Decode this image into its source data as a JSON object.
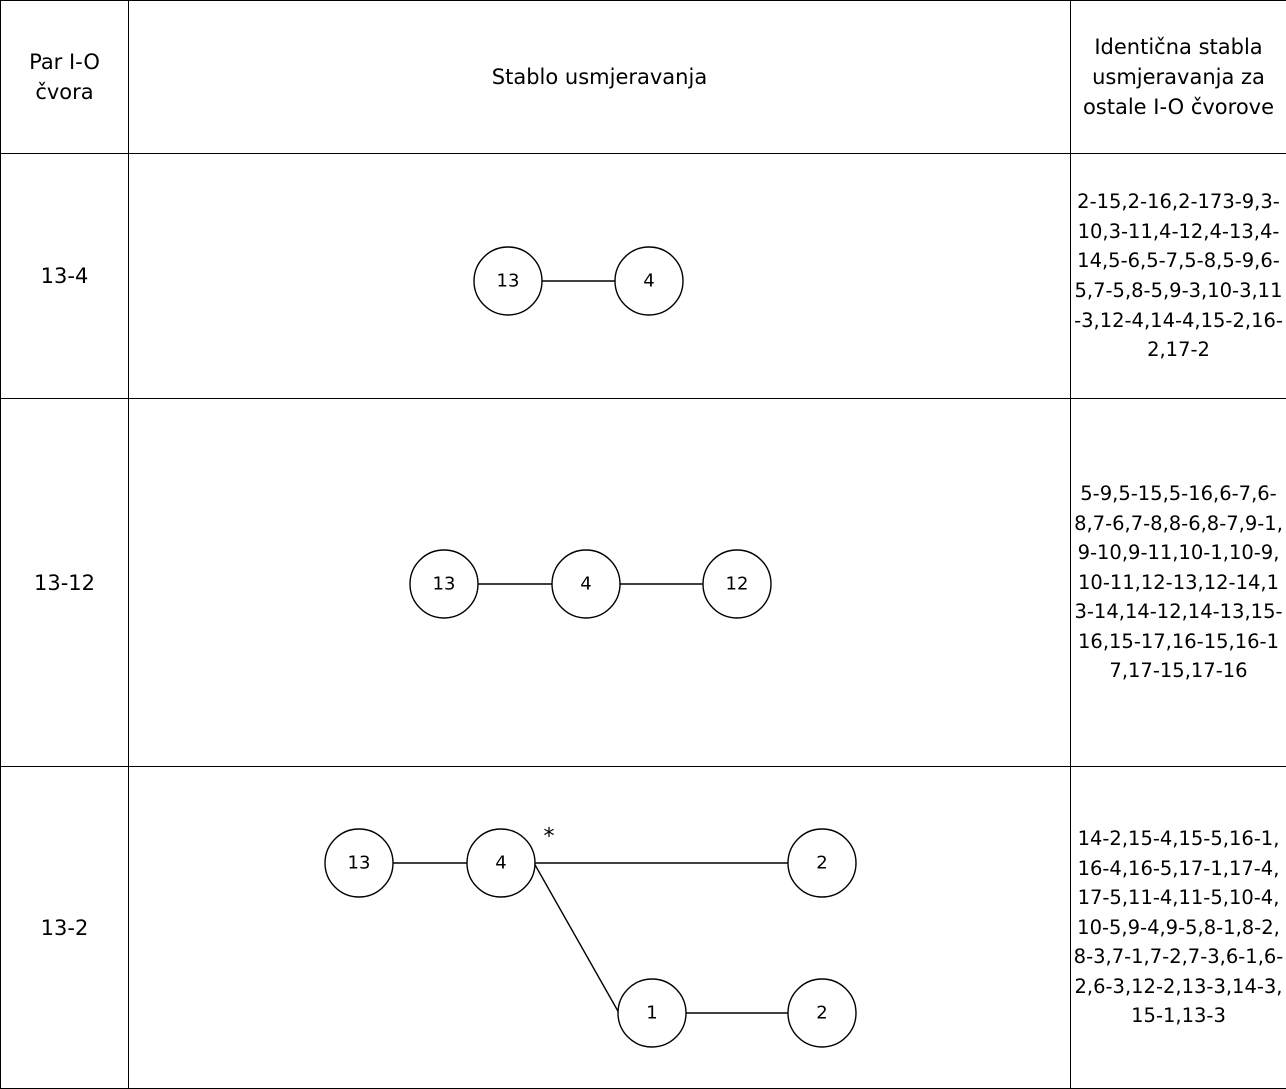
{
  "table": {
    "headers": {
      "pair_line1": "Par I-O",
      "pair_line2": "čvora",
      "tree": "Stablo usmjeravanja",
      "other": "Identična stabla usmjeravanja za ostale I-O čvorove"
    },
    "rows": [
      {
        "pair": "13-4",
        "tree_nodes": [
          "13",
          "4"
        ],
        "other": "2-15,2-16,2-173-9,3-10,3-11,4-12,4-13,4-14,5-6,5-7,5-8,5-9,6-5,7-5,8-5,9-3,10-3,11-3,12-4,14-4,15-2,16-2,17-2"
      },
      {
        "pair": "13-12",
        "tree_nodes": [
          "13",
          "4",
          "12"
        ],
        "other": "5-9,5-15,5-16,6-7,6-8,7-6,7-8,8-6,8-7,9-1,9-10,9-11,10-1,10-9,10-11,12-13,12-14,13-14,14-12,14-13,15-16,15-17,16-15,16-17,17-15,17-16"
      },
      {
        "pair": "13-2",
        "tree_nodes": [
          "13",
          "4",
          "2",
          "1",
          "2"
        ],
        "marker": "*",
        "other": "14-2,15-4,15-5,16-1,16-4,16-5,17-1,17-4,17-5,11-4,11-5,10-4,10-5,9-4,9-5,8-1,8-2,8-3,7-1,7-2,7-3,6-1,6-2,6-3,12-2,13-3,14-3,15-1,13-3"
      }
    ]
  }
}
